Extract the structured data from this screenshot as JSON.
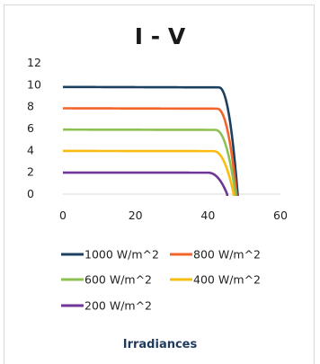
{
  "chart_data": {
    "type": "line",
    "title": "I - V",
    "xlabel": "",
    "ylabel": "",
    "xlim": [
      0,
      60
    ],
    "ylim": [
      0,
      12
    ],
    "xticks": [
      0,
      20,
      40,
      60
    ],
    "yticks": [
      0,
      2,
      4,
      6,
      8,
      10,
      12
    ],
    "legend_title": "Irradiances",
    "legend_position": "bottom",
    "grid": false,
    "series": [
      {
        "name": "1000 W/m^2",
        "color": "#1b4060",
        "isc": 9.8,
        "voc": 48.2,
        "knee": 43
      },
      {
        "name": "800 W/m^2",
        "color": "#f2642a",
        "isc": 7.85,
        "voc": 47.9,
        "knee": 42.5
      },
      {
        "name": "600 W/m^2",
        "color": "#8cc152",
        "isc": 5.9,
        "voc": 47.6,
        "knee": 42
      },
      {
        "name": "400 W/m^2",
        "color": "#f9bd11",
        "isc": 3.95,
        "voc": 47.1,
        "knee": 41.5
      },
      {
        "name": "200 W/m^2",
        "color": "#6f3597",
        "isc": 1.97,
        "voc": 45.3,
        "knee": 40
      }
    ]
  }
}
